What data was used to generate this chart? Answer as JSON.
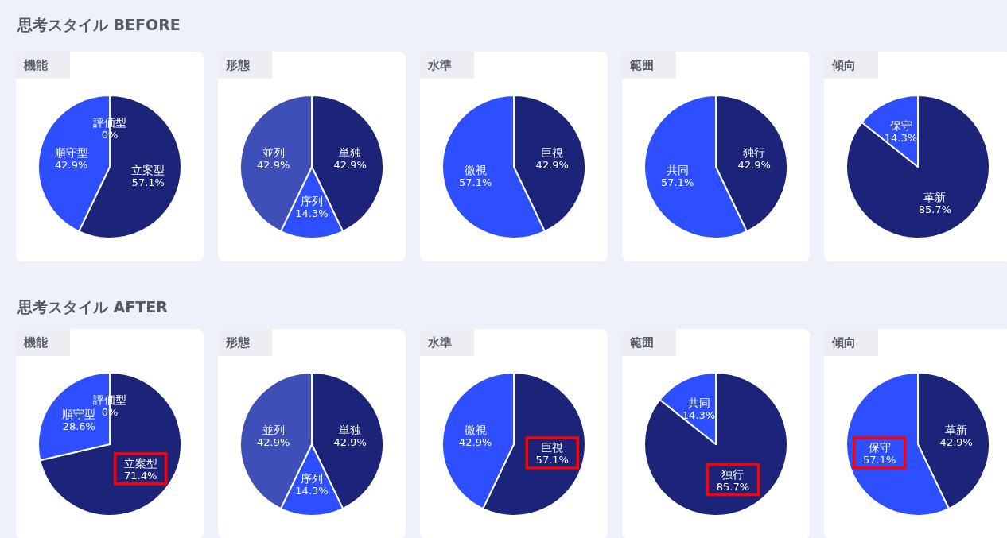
{
  "chart_data": [
    {
      "type": "pie",
      "subtitle": "思考スタイル BEFORE",
      "title": "機能",
      "categories": [
        "立案型",
        "順守型",
        "評価型"
      ],
      "values": [
        57.1,
        42.9,
        0
      ],
      "value_labels": [
        "57.1%",
        "42.9%",
        "0%"
      ],
      "colors": [
        "#1b2479",
        "#2d4fff",
        "#3e50b8"
      ]
    },
    {
      "type": "pie",
      "title": "形態",
      "categories": [
        "単独",
        "序列",
        "並列"
      ],
      "values": [
        42.9,
        14.3,
        42.9
      ],
      "value_labels": [
        "42.9%",
        "14.3%",
        "42.9%"
      ],
      "colors": [
        "#1b2479",
        "#2d4fff",
        "#3e50b8"
      ]
    },
    {
      "type": "pie",
      "title": "水準",
      "categories": [
        "巨視",
        "微視"
      ],
      "values": [
        42.9,
        57.1
      ],
      "value_labels": [
        "42.9%",
        "57.1%"
      ],
      "colors": [
        "#1b2479",
        "#2d4fff"
      ]
    },
    {
      "type": "pie",
      "title": "範囲",
      "categories": [
        "独行",
        "共同"
      ],
      "values": [
        42.9,
        57.1
      ],
      "value_labels": [
        "42.9%",
        "57.1%"
      ],
      "colors": [
        "#1b2479",
        "#2d4fff"
      ]
    },
    {
      "type": "pie",
      "title": "傾向",
      "categories": [
        "革新",
        "保守"
      ],
      "values": [
        85.7,
        14.3
      ],
      "value_labels": [
        "85.7%",
        "14.3%"
      ],
      "colors": [
        "#1b2479",
        "#2d4fff"
      ]
    },
    {
      "type": "pie",
      "subtitle": "思考スタイル AFTER",
      "title": "機能",
      "categories": [
        "立案型",
        "順守型",
        "評価型"
      ],
      "values": [
        71.4,
        28.6,
        0
      ],
      "value_labels": [
        "71.4%",
        "28.6%",
        "0%"
      ],
      "colors": [
        "#1b2479",
        "#2d4fff",
        "#3e50b8"
      ]
    },
    {
      "type": "pie",
      "title": "形態",
      "categories": [
        "単独",
        "序列",
        "並列"
      ],
      "values": [
        42.9,
        14.3,
        42.9
      ],
      "value_labels": [
        "42.9%",
        "14.3%",
        "42.9%"
      ],
      "colors": [
        "#1b2479",
        "#2d4fff",
        "#3e50b8"
      ]
    },
    {
      "type": "pie",
      "title": "水準",
      "categories": [
        "巨視",
        "微視"
      ],
      "values": [
        57.1,
        42.9
      ],
      "value_labels": [
        "57.1%",
        "42.9%"
      ],
      "colors": [
        "#1b2479",
        "#2d4fff"
      ]
    },
    {
      "type": "pie",
      "title": "範囲",
      "categories": [
        "独行",
        "共同"
      ],
      "values": [
        85.7,
        14.3
      ],
      "value_labels": [
        "85.7%",
        "14.3%"
      ],
      "colors": [
        "#1b2479",
        "#2d4fff"
      ]
    },
    {
      "type": "pie",
      "title": "傾向",
      "categories": [
        "革新",
        "保守"
      ],
      "values": [
        42.9,
        57.1
      ],
      "value_labels": [
        "42.9%",
        "57.1%"
      ],
      "colors": [
        "#1b2479",
        "#2d4fff"
      ]
    }
  ]
}
